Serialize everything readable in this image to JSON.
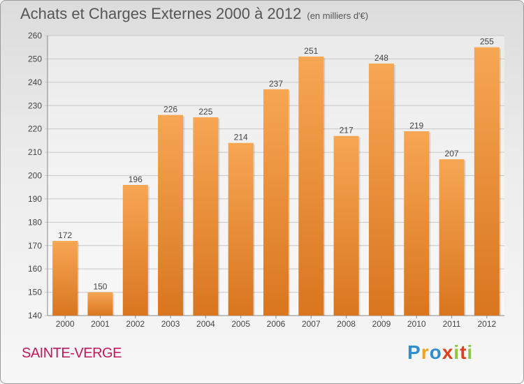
{
  "header": {
    "title": "Achats et Charges Externes 2000 à 2012",
    "subtitle": "(en milliers d'€)"
  },
  "footer": {
    "location": "SAINTE-VERGE",
    "logo_text": "Proxiti"
  },
  "colors": {
    "bar_light": "#f7a654",
    "bar_dark": "#d9761f",
    "grid": "#c8c8c8",
    "axis_text": "#444444",
    "location": "#c2185b",
    "logo_letters": [
      "#2e8ecf",
      "#f2a31b",
      "#2e8ecf",
      "#e0401e",
      "#8dc63f",
      "#e0401e",
      "#8dc63f"
    ]
  },
  "chart_data": {
    "type": "bar",
    "title": "Achats et Charges Externes 2000 à 2012",
    "subtitle": "(en milliers d'€)",
    "categories": [
      "2000",
      "2001",
      "2002",
      "2003",
      "2004",
      "2005",
      "2006",
      "2007",
      "2008",
      "2009",
      "2010",
      "2011",
      "2012"
    ],
    "values": [
      172,
      150,
      196,
      226,
      225,
      214,
      237,
      251,
      217,
      248,
      219,
      207,
      255
    ],
    "ylim": [
      140,
      260
    ],
    "yticks": [
      140,
      150,
      160,
      170,
      180,
      190,
      200,
      210,
      220,
      230,
      240,
      250,
      260
    ],
    "grid": true,
    "xlabel": "",
    "ylabel": ""
  }
}
